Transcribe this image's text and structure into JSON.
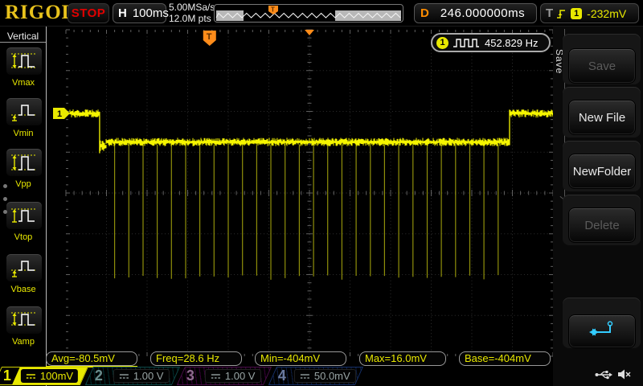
{
  "top_bar": {
    "logo": "RIGOL",
    "run_state": "STOP",
    "horizontal": {
      "label": "H",
      "timebase": "100ms",
      "sample_rate": "5.00MSa/s",
      "mem_depth": "12.0M pts"
    },
    "delay": {
      "label": "D",
      "value": "246.000000ms"
    },
    "trigger": {
      "label": "T",
      "source_channel": "1",
      "level": "-232mV"
    }
  },
  "left_menu": {
    "title": "Vertical",
    "items": [
      {
        "label": "Vmax",
        "icon": "vmax-icon"
      },
      {
        "label": "Vmin",
        "icon": "vmin-icon"
      },
      {
        "label": "Vpp",
        "icon": "vpp-icon"
      },
      {
        "label": "Vtop",
        "icon": "vtop-icon"
      },
      {
        "label": "Vbase",
        "icon": "vbase-icon"
      },
      {
        "label": "Vamp",
        "icon": "vamp-icon"
      }
    ]
  },
  "right_menu": {
    "tab": "Save",
    "buttons": [
      {
        "label": "Save",
        "enabled": false
      },
      {
        "label": "New File",
        "enabled": true
      },
      {
        "label": "NewFolder",
        "enabled": true
      },
      {
        "label": "Delete",
        "enabled": false
      },
      {
        "label": "",
        "icon": "return-arrow-icon",
        "enabled": true
      }
    ]
  },
  "freq_counter": {
    "channel": "1",
    "icon": "square-wave-icon",
    "value": "452.829 Hz"
  },
  "measurements": [
    {
      "text": "Avg=-80.5mV"
    },
    {
      "text": "Freq=28.6 Hz"
    },
    {
      "text": "Min=-404mV"
    },
    {
      "text": "Max=16.0mV"
    },
    {
      "text": "Base=-404mV"
    }
  ],
  "channels": [
    {
      "num": "1",
      "scale": "100mV",
      "active": true,
      "color": "#e8e800"
    },
    {
      "num": "2",
      "scale": "1.00 V",
      "active": false,
      "color": "#00b0b0"
    },
    {
      "num": "3",
      "scale": "1.00 V",
      "active": false,
      "color": "#b000b0"
    },
    {
      "num": "4",
      "scale": "50.0mV",
      "active": false,
      "color": "#3a6ac8"
    }
  ],
  "status_icons": [
    "usb-icon",
    "speaker-muted-icon"
  ],
  "colors": {
    "trace": "#f5f500",
    "trace_dim": "#8f8f0a",
    "trigger_orange": "#ff8c1a",
    "accent_cyan": "#33ccff"
  },
  "waveform": {
    "channel": "1",
    "volts_per_div_mV": 100,
    "time_per_div_ms": 100,
    "zero_offset_div_above_center": 1.95,
    "high_level_mV": 0,
    "low_level_mV": -70,
    "spike_level_mV": -400,
    "spike_period_ms": 35,
    "high_start_ms": -590,
    "fall_ms": -517,
    "rise_ms": 493,
    "high_end_ms": 600,
    "first_spike_ms": -480,
    "last_spike_ms": 465,
    "trigger_level_mV": -232,
    "trigger_time_ms": -246
  }
}
